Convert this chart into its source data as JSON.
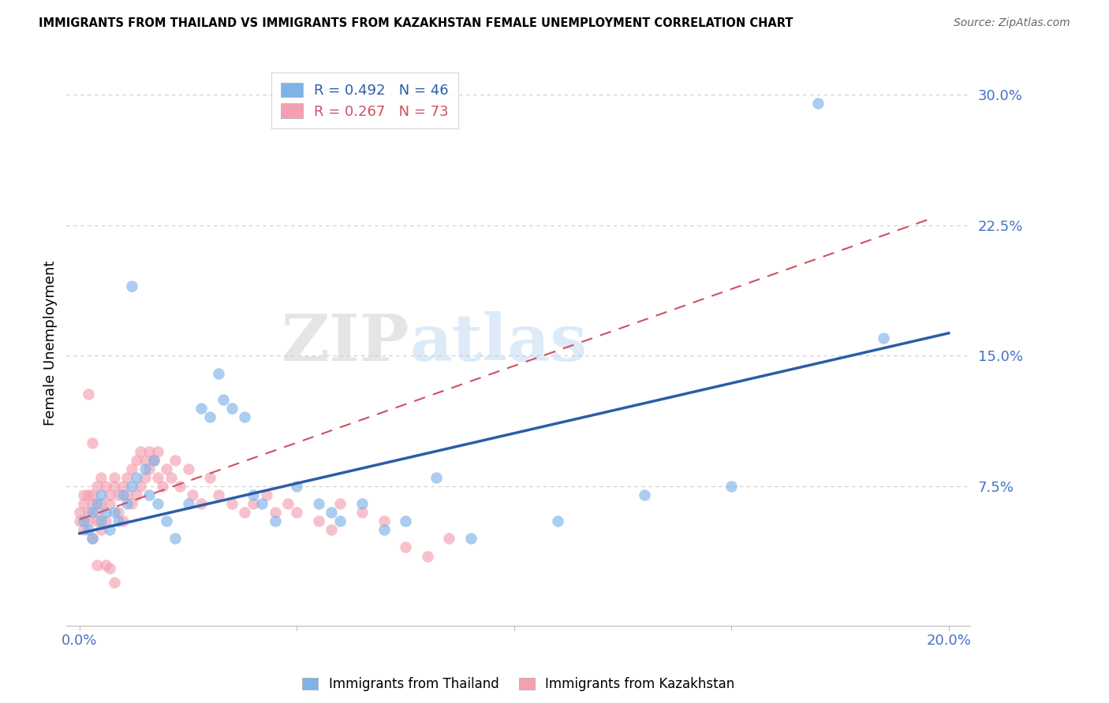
{
  "title": "IMMIGRANTS FROM THAILAND VS IMMIGRANTS FROM KAZAKHSTAN FEMALE UNEMPLOYMENT CORRELATION CHART",
  "source": "Source: ZipAtlas.com",
  "ylabel": "Female Unemployment",
  "tick_color": "#4472C4",
  "xlim": [
    0.0,
    0.205
  ],
  "ylim": [
    0.0,
    0.32
  ],
  "yticks": [
    0.075,
    0.15,
    0.225,
    0.3
  ],
  "ytick_labels": [
    "7.5%",
    "15.0%",
    "22.5%",
    "30.0%"
  ],
  "xtick_labels": [
    "0.0%",
    "",
    "",
    "",
    "20.0%"
  ],
  "watermark_text": "ZIPatlas",
  "legend_blue_label": "R = 0.492   N = 46",
  "legend_pink_label": "R = 0.267   N = 73",
  "blue_scatter_color": "#7EB3E8",
  "pink_scatter_color": "#F4A0B0",
  "blue_line_color": "#2B5DA8",
  "pink_line_color": "#D05060",
  "grid_color": "#CCCCCC",
  "background_color": "#FFFFFF",
  "blue_line_x": [
    0.0,
    0.2
  ],
  "blue_line_y": [
    0.048,
    0.163
  ],
  "pink_line_x": [
    0.0,
    0.195
  ],
  "pink_line_y": [
    0.056,
    0.228
  ],
  "thailand_x": [
    0.001,
    0.002,
    0.003,
    0.003,
    0.004,
    0.005,
    0.005,
    0.006,
    0.007,
    0.008,
    0.009,
    0.01,
    0.011,
    0.012,
    0.013,
    0.015,
    0.016,
    0.017,
    0.018,
    0.02,
    0.022,
    0.025,
    0.028,
    0.03,
    0.033,
    0.035,
    0.038,
    0.04,
    0.042,
    0.045,
    0.05,
    0.055,
    0.058,
    0.06,
    0.065,
    0.07,
    0.075,
    0.082,
    0.09,
    0.11,
    0.13,
    0.15,
    0.17,
    0.185,
    0.032,
    0.012
  ],
  "thailand_y": [
    0.055,
    0.05,
    0.06,
    0.045,
    0.065,
    0.07,
    0.055,
    0.06,
    0.05,
    0.06,
    0.055,
    0.07,
    0.065,
    0.075,
    0.08,
    0.085,
    0.07,
    0.09,
    0.065,
    0.055,
    0.045,
    0.065,
    0.12,
    0.115,
    0.125,
    0.12,
    0.115,
    0.07,
    0.065,
    0.055,
    0.075,
    0.065,
    0.06,
    0.055,
    0.065,
    0.05,
    0.055,
    0.08,
    0.045,
    0.055,
    0.07,
    0.075,
    0.295,
    0.16,
    0.14,
    0.19
  ],
  "kazakhstan_x": [
    0.0,
    0.0,
    0.001,
    0.001,
    0.001,
    0.002,
    0.002,
    0.002,
    0.003,
    0.003,
    0.003,
    0.004,
    0.004,
    0.004,
    0.005,
    0.005,
    0.005,
    0.006,
    0.006,
    0.007,
    0.007,
    0.008,
    0.008,
    0.009,
    0.009,
    0.01,
    0.01,
    0.011,
    0.011,
    0.012,
    0.012,
    0.013,
    0.013,
    0.014,
    0.014,
    0.015,
    0.015,
    0.016,
    0.016,
    0.017,
    0.018,
    0.018,
    0.019,
    0.02,
    0.021,
    0.022,
    0.023,
    0.025,
    0.026,
    0.028,
    0.03,
    0.032,
    0.035,
    0.038,
    0.04,
    0.043,
    0.045,
    0.048,
    0.05,
    0.055,
    0.058,
    0.06,
    0.065,
    0.07,
    0.075,
    0.08,
    0.085,
    0.002,
    0.003,
    0.004,
    0.006,
    0.007,
    0.008
  ],
  "kazakhstan_y": [
    0.055,
    0.06,
    0.05,
    0.065,
    0.07,
    0.055,
    0.06,
    0.07,
    0.045,
    0.065,
    0.07,
    0.055,
    0.06,
    0.075,
    0.05,
    0.065,
    0.08,
    0.055,
    0.075,
    0.065,
    0.07,
    0.075,
    0.08,
    0.06,
    0.07,
    0.055,
    0.075,
    0.07,
    0.08,
    0.065,
    0.085,
    0.07,
    0.09,
    0.075,
    0.095,
    0.08,
    0.09,
    0.085,
    0.095,
    0.09,
    0.08,
    0.095,
    0.075,
    0.085,
    0.08,
    0.09,
    0.075,
    0.085,
    0.07,
    0.065,
    0.08,
    0.07,
    0.065,
    0.06,
    0.065,
    0.07,
    0.06,
    0.065,
    0.06,
    0.055,
    0.05,
    0.065,
    0.06,
    0.055,
    0.04,
    0.035,
    0.045,
    0.128,
    0.1,
    0.03,
    0.03,
    0.028,
    0.02
  ]
}
